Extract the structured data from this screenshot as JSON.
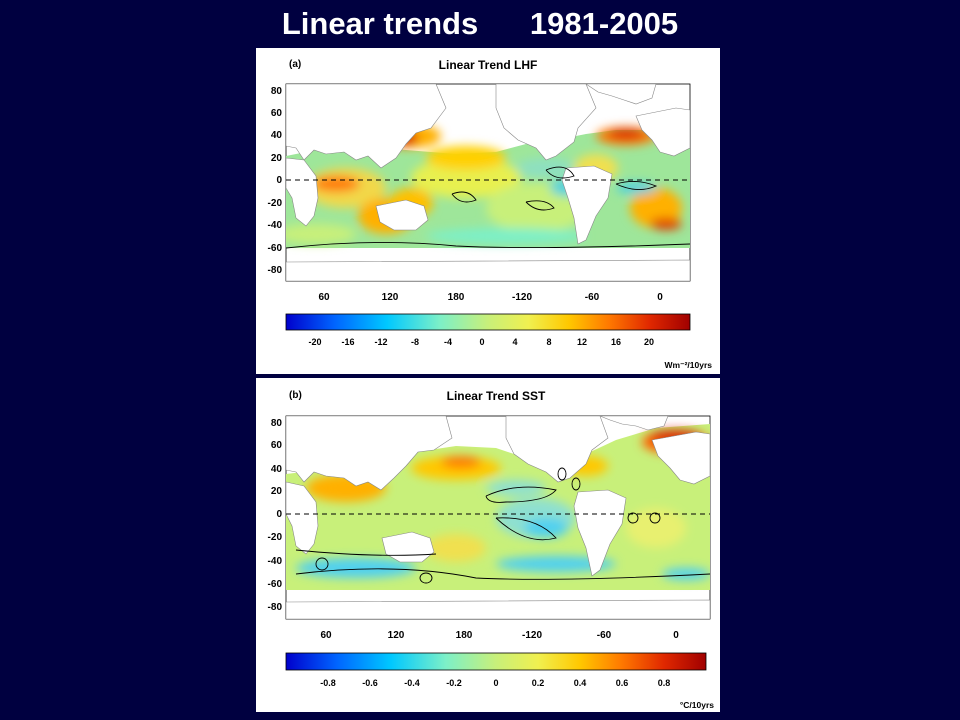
{
  "slide": {
    "title_left": "Linear trends",
    "title_right": "1981-2005"
  },
  "panels": [
    {
      "label": "(a)",
      "title": "Linear Trend  LHF",
      "lat_ticks": [
        "80",
        "60",
        "40",
        "20",
        "0",
        "-20",
        "-40",
        "-60",
        "-80"
      ],
      "lon_ticks": [
        "60",
        "120",
        "180",
        "-120",
        "-60",
        "0"
      ],
      "colorbar_ticks": [
        "-20",
        "-16",
        "-12",
        "-8",
        "-4",
        "0",
        "4",
        "8",
        "12",
        "16",
        "20"
      ],
      "colorbar_unit": "Wm⁻²/10yrs",
      "colorbar_range": [
        -24,
        24
      ]
    },
    {
      "label": "(b)",
      "title": "Linear Trend   SST",
      "lat_ticks": [
        "80",
        "60",
        "40",
        "20",
        "0",
        "-20",
        "-40",
        "-60",
        "-80"
      ],
      "lon_ticks": [
        "60",
        "120",
        "180",
        "-120",
        "-60",
        "0"
      ],
      "colorbar_ticks": [
        "-0.8",
        "-0.6",
        "-0.4",
        "-0.2",
        "0",
        "0.2",
        "0.4",
        "0.6",
        "0.8"
      ],
      "colorbar_unit": "°C/10yrs",
      "colorbar_range": [
        -1.0,
        1.0
      ]
    }
  ],
  "colors": {
    "background": "#000040",
    "land": "#ffffff",
    "colormap": [
      "#0000cc",
      "#0064ff",
      "#00c8ff",
      "#7cf0c8",
      "#c8f07a",
      "#f0f050",
      "#ffc800",
      "#ff7800",
      "#e02800",
      "#a00000"
    ]
  }
}
